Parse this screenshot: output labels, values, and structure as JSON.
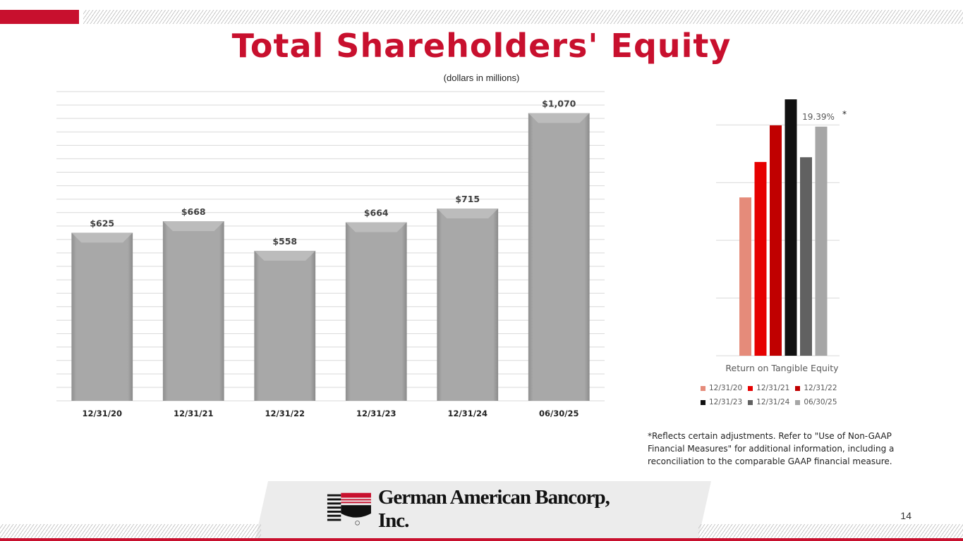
{
  "title": "Total Shareholders' Equity",
  "subtitle": "(dollars in millions)",
  "chart_data": [
    {
      "type": "bar",
      "categories": [
        "12/31/20",
        "12/31/21",
        "12/31/22",
        "12/31/23",
        "12/31/24",
        "06/30/25"
      ],
      "values": [
        625,
        668,
        558,
        664,
        715,
        1070
      ],
      "value_labels": [
        "$625",
        "$668",
        "$558",
        "$664",
        "$715",
        "$1,070"
      ],
      "ylim": [
        0,
        1150
      ],
      "grid": true,
      "bar_color": "#a6a6a6"
    },
    {
      "type": "bar",
      "categories": [
        "Return on Tangible Equity"
      ],
      "xlabel": "Return on Tangible Equity",
      "series": [
        {
          "name": "12/31/20",
          "color": "#e58b7a",
          "value": 13.4
        },
        {
          "name": "12/31/21",
          "color": "#e60000",
          "value": 16.4
        },
        {
          "name": "12/31/22",
          "color": "#c00000",
          "value": 19.5
        },
        {
          "name": "12/31/23",
          "color": "#111111",
          "value": 21.7
        },
        {
          "name": "12/31/24",
          "color": "#616161",
          "value": 16.8
        },
        {
          "name": "06/30/25",
          "color": "#a6a6a6",
          "value": 19.39
        }
      ],
      "annotation": "19.39%",
      "annotation_marker": "*",
      "ylim": [
        0,
        22
      ],
      "grid": true,
      "legend_position": "bottom"
    }
  ],
  "footnote": "*Reflects certain adjustments.  Refer to \"Use of Non-GAAP Financial Measures\" for additional information, including a reconciliation to the comparable GAAP financial measure.",
  "logo": {
    "text": "German American Bancorp, Inc.",
    "registered": "®"
  },
  "page_number": "14",
  "colors": {
    "accent": "#c8102e"
  }
}
